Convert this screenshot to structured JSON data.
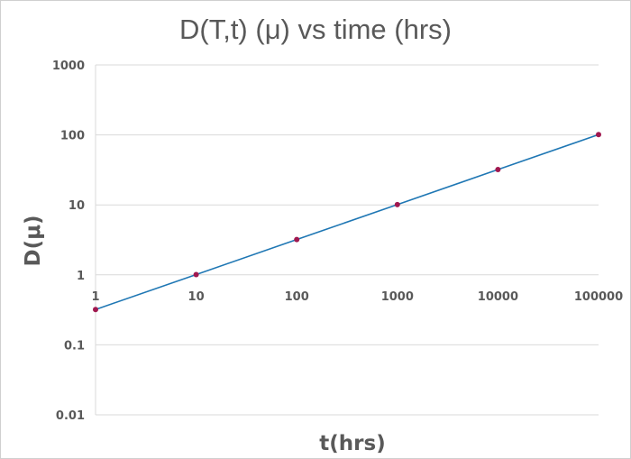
{
  "chart_data": {
    "type": "line",
    "title": "D(T,t) (μ) vs time (hrs)",
    "xlabel": "t(hrs)",
    "ylabel": "D(μ)",
    "x_scale": "log",
    "y_scale": "log",
    "xlim": [
      1,
      100000
    ],
    "ylim": [
      0.01,
      1000
    ],
    "x_ticks": [
      {
        "value": 1,
        "label": "1"
      },
      {
        "value": 10,
        "label": "10"
      },
      {
        "value": 100,
        "label": "100"
      },
      {
        "value": 1000,
        "label": "1000"
      },
      {
        "value": 10000,
        "label": "10000"
      },
      {
        "value": 100000,
        "label": "100000"
      }
    ],
    "y_ticks": [
      {
        "value": 0.01,
        "label": "0.01"
      },
      {
        "value": 0.1,
        "label": "0.1"
      },
      {
        "value": 1,
        "label": "1"
      },
      {
        "value": 10,
        "label": "10"
      },
      {
        "value": 100,
        "label": "100"
      },
      {
        "value": 1000,
        "label": "1000"
      }
    ],
    "grid": "horizontal",
    "series": [
      {
        "x": [
          1,
          10,
          100,
          1000,
          10000,
          100000
        ],
        "y": [
          0.32,
          1.01,
          3.2,
          10.1,
          32,
          101
        ],
        "line_color": "#1f77b4",
        "marker_color": "#a0184f"
      }
    ]
  }
}
